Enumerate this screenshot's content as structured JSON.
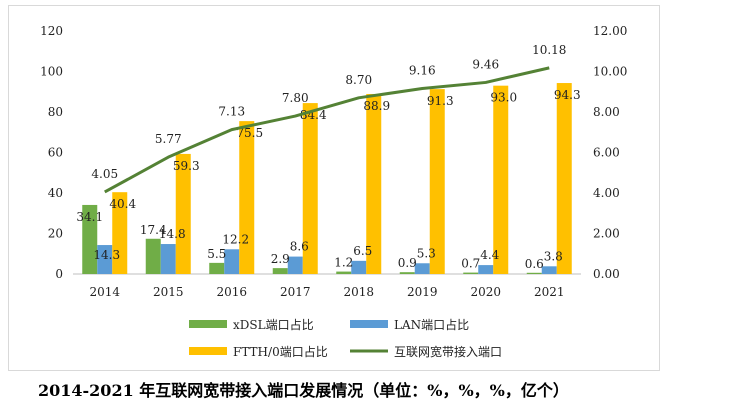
{
  "chart_data": {
    "type": "bar",
    "categories": [
      "2014",
      "2015",
      "2016",
      "2017",
      "2018",
      "2019",
      "2020",
      "2021"
    ],
    "series": [
      {
        "name": "xDSL端口占比",
        "kind": "bar",
        "axis": "left",
        "color": "#70ad47",
        "values": [
          34.1,
          17.4,
          5.5,
          2.9,
          1.2,
          0.9,
          0.7,
          0.6
        ]
      },
      {
        "name": "LAN端口占比",
        "kind": "bar",
        "axis": "left",
        "color": "#5b9bd5",
        "values": [
          14.3,
          14.8,
          12.2,
          8.6,
          6.5,
          5.3,
          4.4,
          3.8
        ]
      },
      {
        "name": "FTTH/0端口占比",
        "kind": "bar",
        "axis": "left",
        "color": "#ffc000",
        "values": [
          40.4,
          59.3,
          75.5,
          84.4,
          88.9,
          91.3,
          93.0,
          94.3
        ]
      },
      {
        "name": "互联网宽带接入端口",
        "kind": "line",
        "axis": "right",
        "color": "#548235",
        "values": [
          4.05,
          5.77,
          7.13,
          7.8,
          8.7,
          9.16,
          9.46,
          10.18
        ]
      }
    ],
    "y_left": {
      "min": 0,
      "max": 120,
      "ticks": [
        "0",
        "20",
        "40",
        "60",
        "80",
        "100",
        "120"
      ]
    },
    "y_right": {
      "min": 0,
      "max": 12,
      "ticks": [
        "0.00",
        "2.00",
        "4.00",
        "6.00",
        "8.00",
        "10.00",
        "12.00"
      ]
    },
    "line_labels": [
      "4.05",
      "5.77",
      "7.13",
      "7.80",
      "8.70",
      "9.16",
      "9.46",
      "10.18"
    ],
    "grid": false,
    "legend_position": "bottom"
  },
  "caption": "2014-2021 年互联网宽带接入端口发展情况（单位：%，%，%，亿个）"
}
